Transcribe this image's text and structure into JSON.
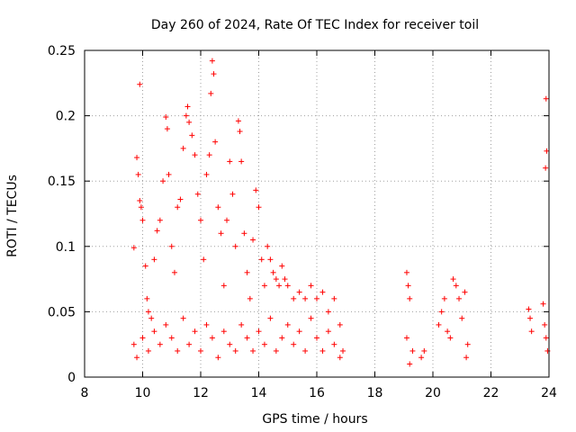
{
  "chart_data": {
    "type": "scatter",
    "title": "Day 260 of 2024, Rate Of TEC Index for receiver toil",
    "xlabel": "GPS time / hours",
    "ylabel": "ROTI / TECUs",
    "xlim": [
      8,
      24
    ],
    "ylim": [
      0,
      0.25
    ],
    "xticks": [
      8,
      10,
      12,
      14,
      16,
      18,
      20,
      22,
      24
    ],
    "yticks": [
      0,
      0.05,
      0.1,
      0.15,
      0.2,
      0.25
    ],
    "ytick_labels": [
      "0",
      "0.05",
      "0.1",
      "0.15",
      "0.2",
      "0.25"
    ],
    "grid": true,
    "marker": "+",
    "color": "#ff0000",
    "series": [
      {
        "name": "ROTI",
        "points": [
          [
            9.7,
            0.099
          ],
          [
            9.9,
            0.224
          ],
          [
            9.8,
            0.168
          ],
          [
            9.85,
            0.155
          ],
          [
            9.9,
            0.135
          ],
          [
            9.95,
            0.13
          ],
          [
            10.0,
            0.12
          ],
          [
            10.1,
            0.085
          ],
          [
            10.15,
            0.06
          ],
          [
            10.2,
            0.05
          ],
          [
            10.3,
            0.045
          ],
          [
            10.4,
            0.09
          ],
          [
            10.5,
            0.112
          ],
          [
            10.6,
            0.12
          ],
          [
            10.7,
            0.15
          ],
          [
            10.8,
            0.199
          ],
          [
            10.85,
            0.19
          ],
          [
            10.9,
            0.155
          ],
          [
            11.0,
            0.1
          ],
          [
            11.1,
            0.08
          ],
          [
            11.2,
            0.13
          ],
          [
            11.3,
            0.136
          ],
          [
            11.4,
            0.175
          ],
          [
            11.5,
            0.2
          ],
          [
            11.55,
            0.207
          ],
          [
            11.6,
            0.195
          ],
          [
            11.7,
            0.185
          ],
          [
            11.8,
            0.17
          ],
          [
            11.9,
            0.14
          ],
          [
            12.0,
            0.12
          ],
          [
            12.1,
            0.09
          ],
          [
            12.2,
            0.155
          ],
          [
            12.3,
            0.17
          ],
          [
            12.35,
            0.217
          ],
          [
            12.4,
            0.242
          ],
          [
            12.45,
            0.232
          ],
          [
            12.5,
            0.18
          ],
          [
            12.6,
            0.13
          ],
          [
            12.7,
            0.11
          ],
          [
            12.8,
            0.07
          ],
          [
            12.9,
            0.12
          ],
          [
            13.0,
            0.165
          ],
          [
            13.1,
            0.14
          ],
          [
            13.2,
            0.1
          ],
          [
            13.3,
            0.196
          ],
          [
            13.35,
            0.188
          ],
          [
            13.4,
            0.165
          ],
          [
            13.5,
            0.11
          ],
          [
            13.6,
            0.08
          ],
          [
            13.7,
            0.06
          ],
          [
            13.8,
            0.105
          ],
          [
            13.9,
            0.143
          ],
          [
            14.0,
            0.13
          ],
          [
            14.1,
            0.09
          ],
          [
            14.2,
            0.07
          ],
          [
            14.3,
            0.1
          ],
          [
            14.4,
            0.09
          ],
          [
            14.5,
            0.08
          ],
          [
            14.6,
            0.075
          ],
          [
            14.7,
            0.07
          ],
          [
            14.8,
            0.085
          ],
          [
            14.9,
            0.075
          ],
          [
            15.0,
            0.07
          ],
          [
            15.2,
            0.06
          ],
          [
            15.4,
            0.065
          ],
          [
            15.6,
            0.06
          ],
          [
            15.8,
            0.07
          ],
          [
            16.0,
            0.06
          ],
          [
            16.2,
            0.065
          ],
          [
            16.4,
            0.05
          ],
          [
            16.6,
            0.06
          ],
          [
            16.8,
            0.04
          ],
          [
            9.7,
            0.025
          ],
          [
            9.8,
            0.015
          ],
          [
            10.0,
            0.03
          ],
          [
            10.2,
            0.02
          ],
          [
            10.4,
            0.035
          ],
          [
            10.6,
            0.025
          ],
          [
            10.8,
            0.04
          ],
          [
            11.0,
            0.03
          ],
          [
            11.2,
            0.02
          ],
          [
            11.4,
            0.045
          ],
          [
            11.6,
            0.025
          ],
          [
            11.8,
            0.035
          ],
          [
            12.0,
            0.02
          ],
          [
            12.2,
            0.04
          ],
          [
            12.4,
            0.03
          ],
          [
            12.6,
            0.015
          ],
          [
            12.8,
            0.035
          ],
          [
            13.0,
            0.025
          ],
          [
            13.2,
            0.02
          ],
          [
            13.4,
            0.04
          ],
          [
            13.6,
            0.03
          ],
          [
            13.8,
            0.02
          ],
          [
            14.0,
            0.035
          ],
          [
            14.2,
            0.025
          ],
          [
            14.4,
            0.045
          ],
          [
            14.6,
            0.02
          ],
          [
            14.8,
            0.03
          ],
          [
            15.0,
            0.04
          ],
          [
            15.2,
            0.025
          ],
          [
            15.4,
            0.035
          ],
          [
            15.6,
            0.02
          ],
          [
            15.8,
            0.045
          ],
          [
            16.0,
            0.03
          ],
          [
            16.2,
            0.02
          ],
          [
            16.4,
            0.035
          ],
          [
            16.6,
            0.025
          ],
          [
            16.8,
            0.015
          ],
          [
            16.9,
            0.02
          ],
          [
            19.1,
            0.08
          ],
          [
            19.15,
            0.07
          ],
          [
            19.2,
            0.06
          ],
          [
            19.1,
            0.03
          ],
          [
            19.2,
            0.01
          ],
          [
            19.3,
            0.02
          ],
          [
            19.6,
            0.015
          ],
          [
            19.7,
            0.02
          ],
          [
            20.2,
            0.04
          ],
          [
            20.3,
            0.05
          ],
          [
            20.4,
            0.06
          ],
          [
            20.5,
            0.035
          ],
          [
            20.6,
            0.03
          ],
          [
            20.7,
            0.075
          ],
          [
            20.8,
            0.07
          ],
          [
            20.9,
            0.06
          ],
          [
            21.0,
            0.045
          ],
          [
            21.1,
            0.065
          ],
          [
            21.2,
            0.025
          ],
          [
            21.15,
            0.015
          ],
          [
            23.3,
            0.052
          ],
          [
            23.35,
            0.045
          ],
          [
            23.4,
            0.035
          ],
          [
            23.8,
            0.056
          ],
          [
            23.85,
            0.04
          ],
          [
            23.9,
            0.03
          ],
          [
            23.95,
            0.02
          ],
          [
            23.9,
            0.213
          ],
          [
            23.92,
            0.173
          ],
          [
            23.88,
            0.16
          ]
        ]
      }
    ]
  }
}
